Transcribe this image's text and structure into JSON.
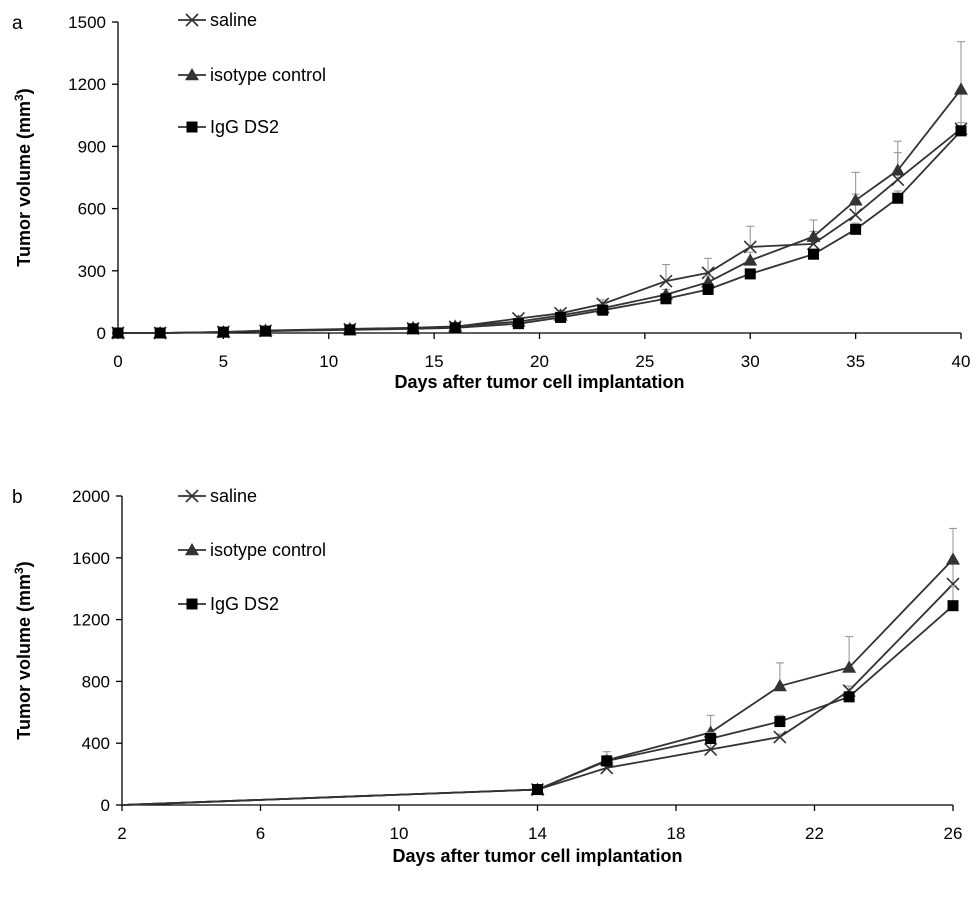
{
  "chart_data": [
    {
      "type": "line",
      "panel_label": "a",
      "xlabel": "Days after tumor cell implantation",
      "ylabel": "Tumor volume (mm",
      "ylabel_sup": "3",
      "ylabel_close": ")",
      "xlim": [
        0,
        40
      ],
      "ylim": [
        0,
        1500
      ],
      "xticks": [
        0,
        5,
        10,
        15,
        20,
        25,
        30,
        35,
        40
      ],
      "yticks": [
        0,
        300,
        600,
        900,
        1200,
        1500
      ],
      "legend_position": "top-left",
      "x": [
        0,
        2,
        5,
        7,
        11,
        14,
        16,
        19,
        21,
        23,
        26,
        28,
        30,
        33,
        35,
        37,
        40
      ],
      "series": [
        {
          "name": "saline",
          "marker": "x",
          "values": [
            0,
            0,
            5,
            10,
            18,
            22,
            30,
            70,
            95,
            140,
            250,
            290,
            415,
            430,
            570,
            740,
            985
          ],
          "errors": [
            0,
            0,
            2,
            4,
            5,
            6,
            8,
            12,
            15,
            20,
            80,
            70,
            100,
            60,
            100,
            130,
            190
          ]
        },
        {
          "name": "isotype control",
          "marker": "triangle",
          "values": [
            0,
            0,
            5,
            12,
            20,
            25,
            32,
            55,
            85,
            120,
            185,
            245,
            350,
            465,
            640,
            785,
            1175
          ],
          "errors": [
            0,
            0,
            2,
            4,
            5,
            6,
            8,
            10,
            15,
            20,
            25,
            30,
            40,
            80,
            135,
            140,
            230
          ]
        },
        {
          "name": "IgG DS2",
          "marker": "square",
          "values": [
            0,
            0,
            4,
            9,
            15,
            20,
            25,
            45,
            75,
            110,
            165,
            210,
            285,
            380,
            500,
            650,
            975
          ],
          "errors": [
            0,
            0,
            2,
            3,
            4,
            5,
            6,
            8,
            10,
            12,
            15,
            18,
            20,
            25,
            30,
            35,
            40
          ]
        }
      ]
    },
    {
      "type": "line",
      "panel_label": "b",
      "xlabel": "Days after tumor cell implantation",
      "ylabel": "Tumor volume (mm",
      "ylabel_sup": "3",
      "ylabel_close": ")",
      "xlim": [
        2,
        26
      ],
      "ylim": [
        0,
        2000
      ],
      "xticks": [
        2,
        6,
        10,
        14,
        18,
        22,
        26
      ],
      "yticks": [
        0,
        400,
        800,
        1200,
        1600,
        2000
      ],
      "legend_position": "top-left",
      "x": [
        2,
        14,
        16,
        19,
        21,
        23,
        26
      ],
      "series": [
        {
          "name": "saline",
          "marker": "x",
          "values": [
            0,
            100,
            240,
            360,
            440,
            740,
            1430
          ],
          "errors": [
            0,
            10,
            20,
            60,
            20,
            30,
            150
          ]
        },
        {
          "name": "isotype control",
          "marker": "triangle",
          "values": [
            0,
            100,
            290,
            470,
            770,
            890,
            1590
          ],
          "errors": [
            0,
            10,
            30,
            110,
            150,
            200,
            200
          ]
        },
        {
          "name": "IgG DS2",
          "marker": "square",
          "values": [
            0,
            100,
            285,
            430,
            540,
            700,
            1290
          ],
          "errors": [
            0,
            10,
            60,
            40,
            40,
            30,
            130
          ]
        }
      ]
    }
  ]
}
